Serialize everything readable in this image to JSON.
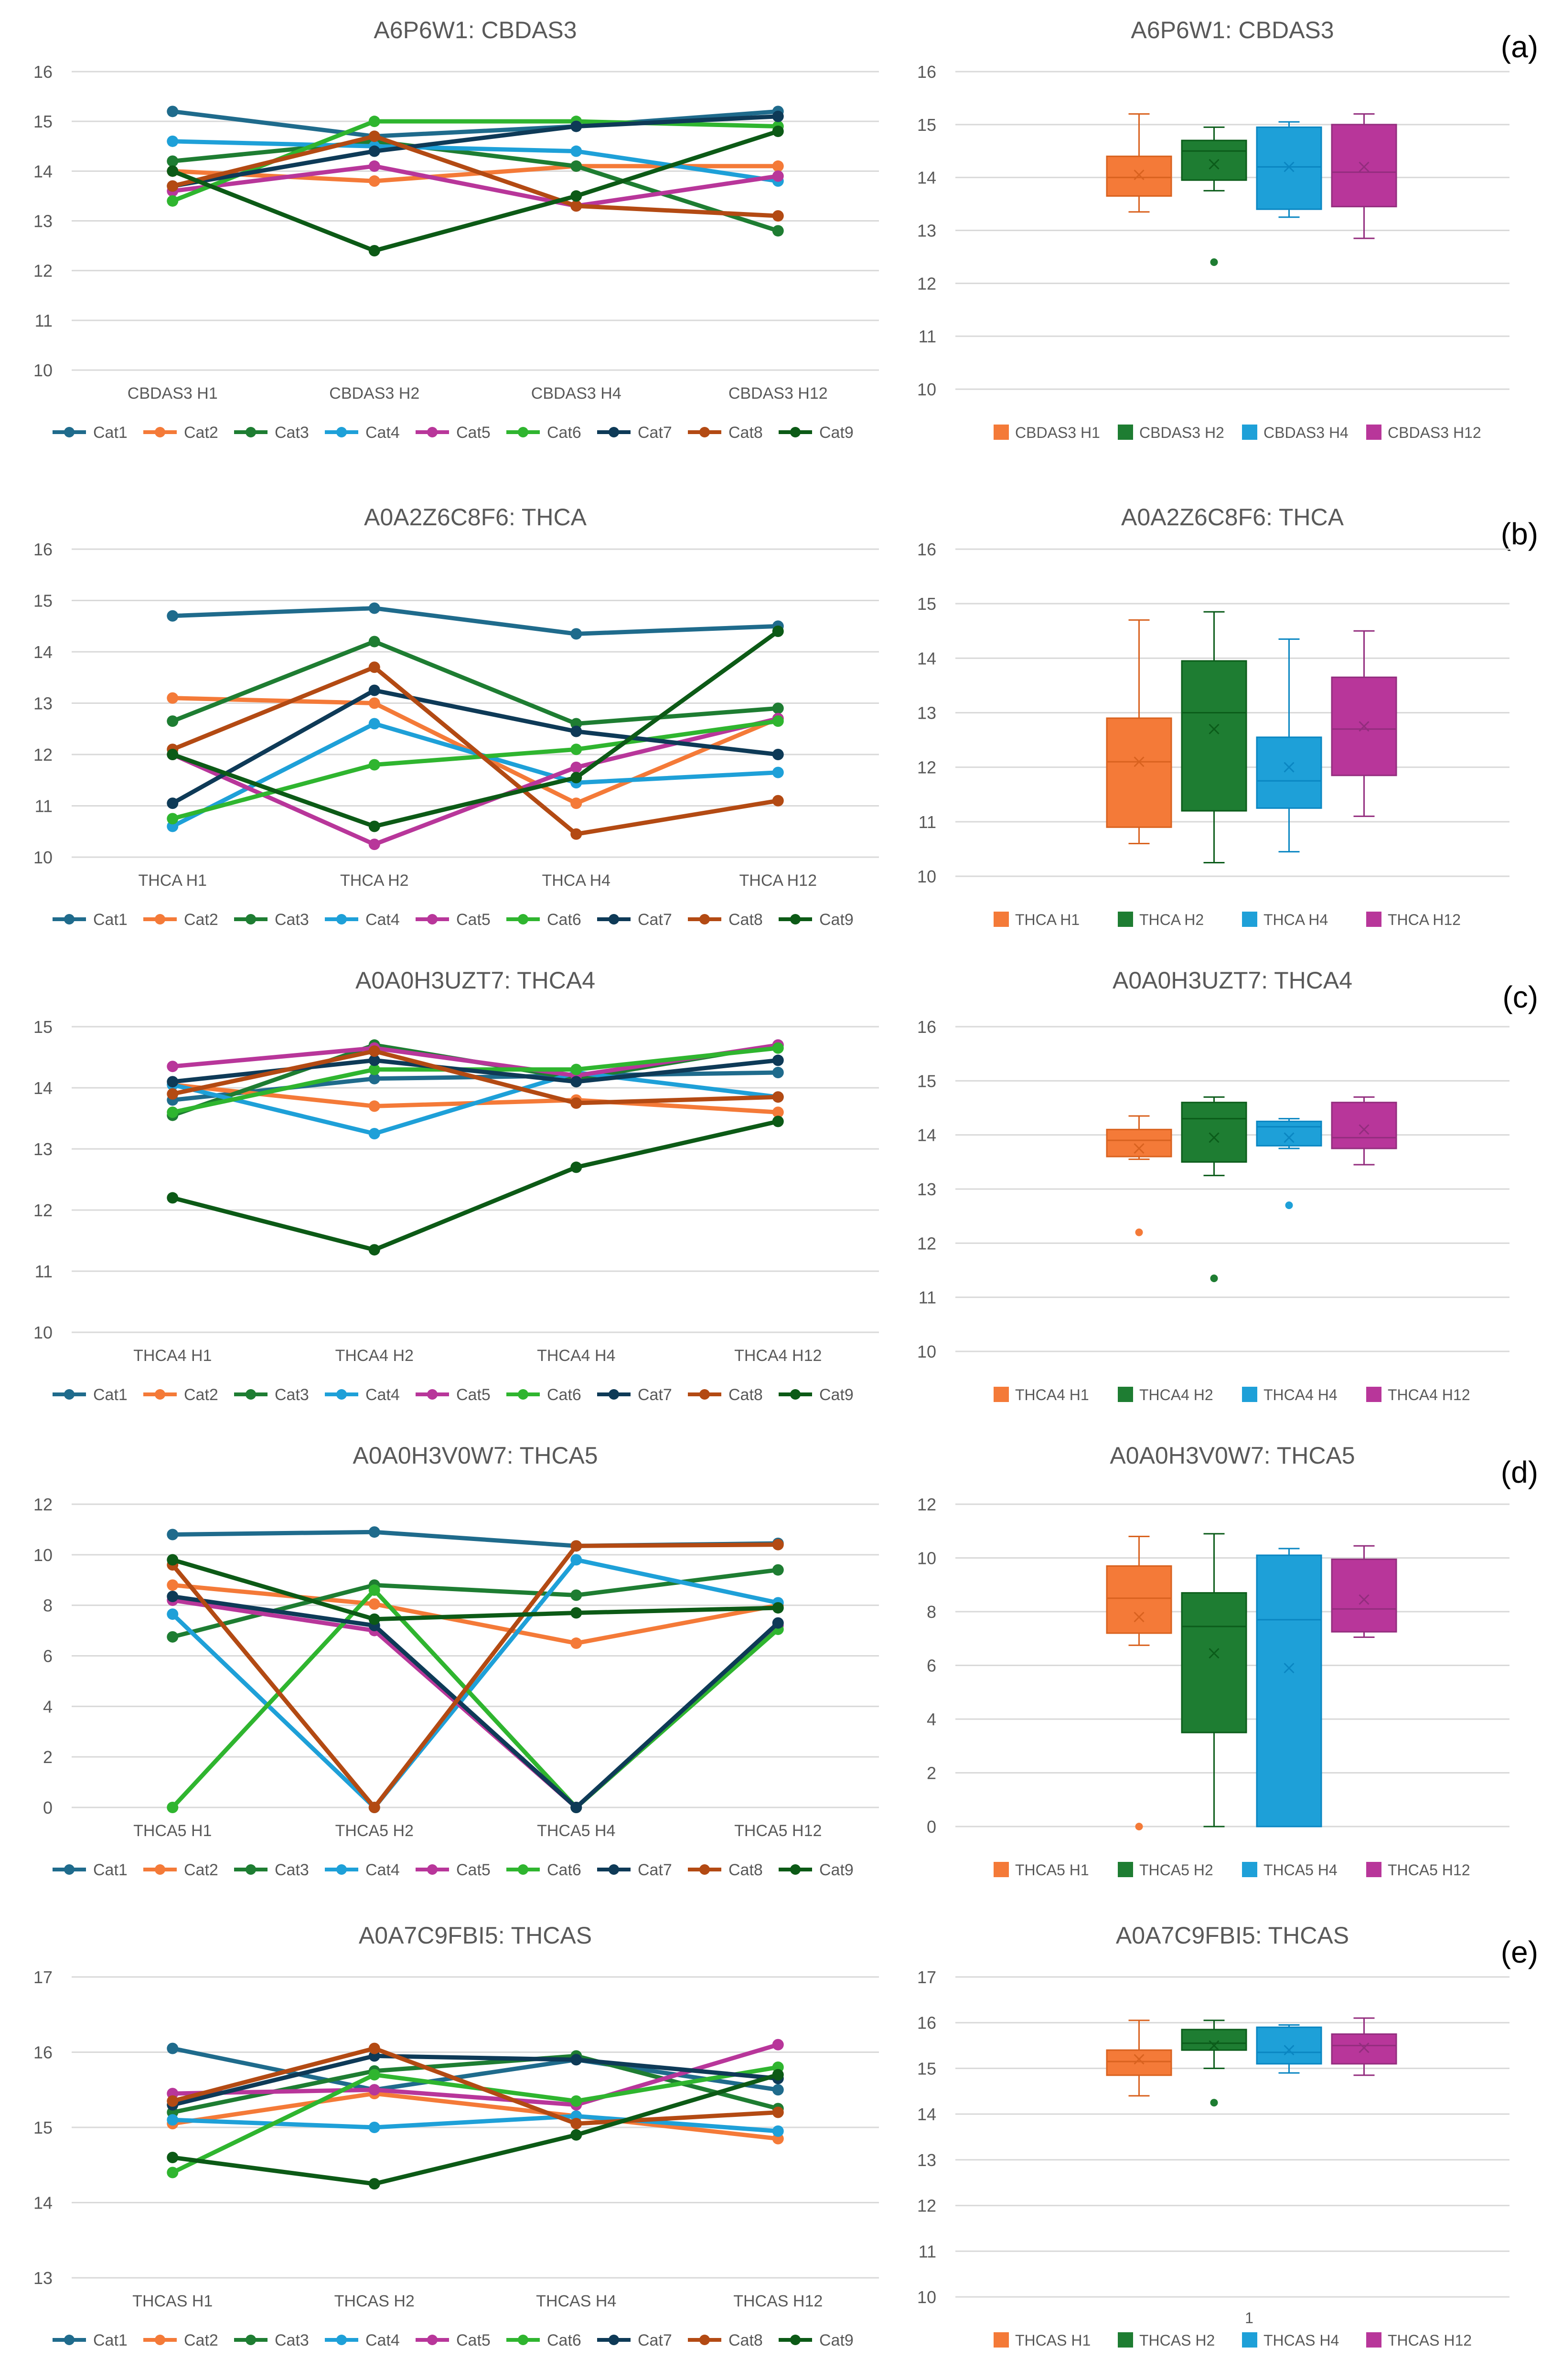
{
  "colors": {
    "categories": [
      "#1f6b8c",
      "#f47a38",
      "#1e7d32",
      "#1ea0d8",
      "#b8369a",
      "#2fb52f",
      "#0e3a57",
      "#b34a13",
      "#0c5a16"
    ],
    "box": [
      "#f47a38",
      "#1e7d32",
      "#1ea0d8",
      "#b8369a"
    ],
    "boxDark": [
      "#d9621f",
      "#0b5c1a",
      "#0a86c2",
      "#932d7e"
    ],
    "grid": "#d9d9d9",
    "text": "#595959"
  },
  "category_names": [
    "Cat1",
    "Cat2",
    "Cat3",
    "Cat4",
    "Cat5",
    "Cat6",
    "Cat7",
    "Cat8",
    "Cat9"
  ],
  "chart_data": [
    {
      "panel": "(a)",
      "type": "line",
      "title": "A6P6W1: CBDAS3",
      "categories": [
        "CBDAS3 H1",
        "CBDAS3 H2",
        "CBDAS3 H4",
        "CBDAS3 H12"
      ],
      "ylim": [
        10,
        16
      ],
      "yticks": [
        "10",
        "11",
        "12",
        "13",
        "14",
        "15",
        "16"
      ],
      "legend": "bottom",
      "series": [
        {
          "name": "Cat1",
          "values": [
            15.2,
            14.7,
            14.9,
            15.2
          ]
        },
        {
          "name": "Cat2",
          "values": [
            14.0,
            13.8,
            14.1,
            14.1
          ]
        },
        {
          "name": "Cat3",
          "values": [
            14.2,
            14.6,
            14.1,
            12.8
          ]
        },
        {
          "name": "Cat4",
          "values": [
            14.6,
            14.5,
            14.4,
            13.8
          ]
        },
        {
          "name": "Cat5",
          "values": [
            13.6,
            14.1,
            13.3,
            13.9
          ]
        },
        {
          "name": "Cat6",
          "values": [
            13.4,
            15.0,
            15.0,
            14.9
          ]
        },
        {
          "name": "Cat7",
          "values": [
            13.7,
            14.4,
            14.9,
            15.1
          ]
        },
        {
          "name": "Cat8",
          "values": [
            13.7,
            14.7,
            13.3,
            13.1
          ]
        },
        {
          "name": "Cat9",
          "values": [
            14.0,
            12.4,
            13.5,
            14.8
          ]
        }
      ]
    },
    {
      "panel": "(a)",
      "type": "box",
      "title": "A6P6W1: CBDAS3",
      "ylim": [
        10,
        16
      ],
      "yticks": [
        "10",
        "11",
        "12",
        "13",
        "14",
        "15",
        "16"
      ],
      "legend": "bottom",
      "xlabel": "",
      "boxes": [
        {
          "name": "CBDAS3 H1",
          "min": 13.35,
          "q1": 13.65,
          "median": 14.0,
          "q3": 14.4,
          "max": 15.2,
          "mean": 14.05,
          "outliers": []
        },
        {
          "name": "CBDAS3 H2",
          "min": 13.75,
          "q1": 13.95,
          "median": 14.5,
          "q3": 14.7,
          "max": 14.95,
          "mean": 14.25,
          "outliers": [
            12.4
          ]
        },
        {
          "name": "CBDAS3 H4",
          "min": 13.25,
          "q1": 13.4,
          "median": 14.2,
          "q3": 14.95,
          "max": 15.05,
          "mean": 14.2,
          "outliers": []
        },
        {
          "name": "CBDAS3 H12",
          "min": 12.85,
          "q1": 13.45,
          "median": 14.1,
          "q3": 15.0,
          "max": 15.2,
          "mean": 14.2,
          "outliers": []
        }
      ]
    },
    {
      "panel": "(b)",
      "type": "line",
      "title": "A0A2Z6C8F6: THCA",
      "categories": [
        "THCA H1",
        "THCA H2",
        "THCA H4",
        "THCA H12"
      ],
      "ylim": [
        10,
        16
      ],
      "yticks": [
        "10",
        "11",
        "12",
        "13",
        "14",
        "15",
        "16"
      ],
      "legend": "bottom",
      "series": [
        {
          "name": "Cat1",
          "values": [
            14.7,
            14.85,
            14.35,
            14.5
          ]
        },
        {
          "name": "Cat2",
          "values": [
            13.1,
            13.0,
            11.05,
            12.7
          ]
        },
        {
          "name": "Cat3",
          "values": [
            12.65,
            14.2,
            12.6,
            12.9
          ]
        },
        {
          "name": "Cat4",
          "values": [
            10.6,
            12.6,
            11.45,
            11.65
          ]
        },
        {
          "name": "Cat5",
          "values": [
            12.0,
            10.25,
            11.75,
            12.7
          ]
        },
        {
          "name": "Cat6",
          "values": [
            10.75,
            11.8,
            12.1,
            12.65
          ]
        },
        {
          "name": "Cat7",
          "values": [
            11.05,
            13.25,
            12.45,
            12.0
          ]
        },
        {
          "name": "Cat8",
          "values": [
            12.1,
            13.7,
            10.45,
            11.1
          ]
        },
        {
          "name": "Cat9",
          "values": [
            12.0,
            10.6,
            11.55,
            14.4
          ]
        }
      ]
    },
    {
      "panel": "(b)",
      "type": "box",
      "title": "A0A2Z6C8F6: THCA",
      "ylim": [
        10,
        16
      ],
      "yticks": [
        "10",
        "11",
        "12",
        "13",
        "14",
        "15",
        "16"
      ],
      "legend": "bottom",
      "xlabel": "",
      "boxes": [
        {
          "name": "THCA H1",
          "min": 10.6,
          "q1": 10.9,
          "median": 12.1,
          "q3": 12.9,
          "max": 14.7,
          "mean": 12.1,
          "outliers": []
        },
        {
          "name": "THCA H2",
          "min": 10.25,
          "q1": 11.2,
          "median": 13.0,
          "q3": 13.95,
          "max": 14.85,
          "mean": 12.7,
          "outliers": []
        },
        {
          "name": "THCA H4",
          "min": 10.45,
          "q1": 11.25,
          "median": 11.75,
          "q3": 12.55,
          "max": 14.35,
          "mean": 12.0,
          "outliers": []
        },
        {
          "name": "THCA H12",
          "min": 11.1,
          "q1": 11.85,
          "median": 12.7,
          "q3": 13.65,
          "max": 14.5,
          "mean": 12.75,
          "outliers": []
        }
      ]
    },
    {
      "panel": "(c)",
      "type": "line",
      "title": "A0A0H3UZT7: THCA4",
      "categories": [
        "THCA4 H1",
        "THCA4 H2",
        "THCA4 H4",
        "THCA4 H12"
      ],
      "ylim": [
        10,
        15
      ],
      "yticks": [
        "10",
        "11",
        "12",
        "13",
        "14",
        "15"
      ],
      "legend": "bottom",
      "series": [
        {
          "name": "Cat1",
          "values": [
            13.8,
            14.15,
            14.2,
            14.25
          ]
        },
        {
          "name": "Cat2",
          "values": [
            14.05,
            13.7,
            13.8,
            13.6
          ]
        },
        {
          "name": "Cat3",
          "values": [
            13.55,
            14.7,
            14.15,
            14.7
          ]
        },
        {
          "name": "Cat4",
          "values": [
            14.05,
            13.25,
            14.25,
            13.85
          ]
        },
        {
          "name": "Cat5",
          "values": [
            14.35,
            14.65,
            14.2,
            14.7
          ]
        },
        {
          "name": "Cat6",
          "values": [
            13.6,
            14.3,
            14.3,
            14.65
          ]
        },
        {
          "name": "Cat7",
          "values": [
            14.1,
            14.45,
            14.1,
            14.45
          ]
        },
        {
          "name": "Cat8",
          "values": [
            13.9,
            14.6,
            13.75,
            13.85
          ]
        },
        {
          "name": "Cat9",
          "values": [
            12.2,
            11.35,
            12.7,
            13.45
          ]
        }
      ]
    },
    {
      "panel": "(c)",
      "type": "box",
      "title": "A0A0H3UZT7: THCA4",
      "ylim": [
        10,
        16
      ],
      "yticks": [
        "10",
        "11",
        "12",
        "13",
        "14",
        "15",
        "16"
      ],
      "legend": "bottom",
      "xlabel": "",
      "boxes": [
        {
          "name": "THCA4 H1",
          "min": 13.55,
          "q1": 13.6,
          "median": 13.9,
          "q3": 14.1,
          "max": 14.35,
          "mean": 13.75,
          "outliers": [
            12.2
          ]
        },
        {
          "name": "THCA4 H2",
          "min": 13.25,
          "q1": 13.5,
          "median": 14.3,
          "q3": 14.6,
          "max": 14.7,
          "mean": 13.95,
          "outliers": [
            11.35
          ]
        },
        {
          "name": "THCA4 H4",
          "min": 13.75,
          "q1": 13.8,
          "median": 14.15,
          "q3": 14.25,
          "max": 14.3,
          "mean": 13.95,
          "outliers": [
            12.7
          ]
        },
        {
          "name": "THCA4 H12",
          "min": 13.45,
          "q1": 13.75,
          "median": 13.95,
          "q3": 14.6,
          "max": 14.7,
          "mean": 14.1,
          "outliers": []
        }
      ]
    },
    {
      "panel": "(d)",
      "type": "line",
      "title": "A0A0H3V0W7: THCA5",
      "categories": [
        "THCA5 H1",
        "THCA5 H2",
        "THCA5 H4",
        "THCA5 H12"
      ],
      "ylim": [
        0,
        12
      ],
      "yticks": [
        "0",
        "2",
        "4",
        "6",
        "8",
        "10",
        "12"
      ],
      "legend": "bottom",
      "series": [
        {
          "name": "Cat1",
          "values": [
            10.8,
            10.9,
            10.35,
            10.45
          ]
        },
        {
          "name": "Cat2",
          "values": [
            8.8,
            8.05,
            6.5,
            8.0
          ]
        },
        {
          "name": "Cat3",
          "values": [
            6.75,
            8.8,
            8.4,
            9.4
          ]
        },
        {
          "name": "Cat4",
          "values": [
            7.65,
            0.0,
            9.8,
            8.1
          ]
        },
        {
          "name": "Cat5",
          "values": [
            8.2,
            7.0,
            0.0,
            7.2
          ]
        },
        {
          "name": "Cat6",
          "values": [
            0.0,
            8.6,
            0.0,
            7.05
          ]
        },
        {
          "name": "Cat7",
          "values": [
            8.35,
            7.2,
            0.0,
            7.3
          ]
        },
        {
          "name": "Cat8",
          "values": [
            9.6,
            0.0,
            10.35,
            10.4
          ]
        },
        {
          "name": "Cat9",
          "values": [
            9.8,
            7.45,
            7.7,
            7.9
          ]
        }
      ]
    },
    {
      "panel": "(d)",
      "type": "box",
      "title": "A0A0H3V0W7: THCA5",
      "ylim": [
        0,
        12
      ],
      "yticks": [
        "0",
        "2",
        "4",
        "6",
        "8",
        "10",
        "12"
      ],
      "legend": "bottom",
      "xlabel": "",
      "boxes": [
        {
          "name": "THCA5 H1",
          "min": 6.75,
          "q1": 7.2,
          "median": 8.5,
          "q3": 9.7,
          "max": 10.8,
          "mean": 7.8,
          "outliers": [
            0.0
          ]
        },
        {
          "name": "THCA5 H2",
          "min": 0.0,
          "q1": 3.5,
          "median": 7.45,
          "q3": 8.7,
          "max": 10.9,
          "mean": 6.45,
          "outliers": []
        },
        {
          "name": "THCA5 H4",
          "min": 0.0,
          "q1": 0.0,
          "median": 7.7,
          "q3": 10.1,
          "max": 10.35,
          "mean": 5.9,
          "outliers": []
        },
        {
          "name": "THCA5 H12",
          "min": 7.05,
          "q1": 7.25,
          "median": 8.1,
          "q3": 9.95,
          "max": 10.45,
          "mean": 8.45,
          "outliers": []
        }
      ]
    },
    {
      "panel": "(e)",
      "type": "line",
      "title": "A0A7C9FBI5: THCAS",
      "categories": [
        "THCAS H1",
        "THCAS H2",
        "THCAS H4",
        "THCAS H12"
      ],
      "ylim": [
        13,
        17
      ],
      "yticks": [
        "13",
        "14",
        "15",
        "16",
        "17"
      ],
      "legend": "bottom",
      "series": [
        {
          "name": "Cat1",
          "values": [
            16.05,
            15.5,
            15.9,
            15.5
          ]
        },
        {
          "name": "Cat2",
          "values": [
            15.05,
            15.45,
            15.15,
            14.85
          ]
        },
        {
          "name": "Cat3",
          "values": [
            15.2,
            15.75,
            15.95,
            15.25
          ]
        },
        {
          "name": "Cat4",
          "values": [
            15.1,
            15.0,
            15.15,
            14.95
          ]
        },
        {
          "name": "Cat5",
          "values": [
            15.45,
            15.5,
            15.3,
            16.1
          ]
        },
        {
          "name": "Cat6",
          "values": [
            14.4,
            15.7,
            15.35,
            15.8
          ]
        },
        {
          "name": "Cat7",
          "values": [
            15.3,
            15.95,
            15.9,
            15.65
          ]
        },
        {
          "name": "Cat8",
          "values": [
            15.35,
            16.05,
            15.05,
            15.2
          ]
        },
        {
          "name": "Cat9",
          "values": [
            14.6,
            14.25,
            14.9,
            15.7
          ]
        }
      ]
    },
    {
      "panel": "(e)",
      "type": "box",
      "title": "A0A7C9FBI5: THCAS",
      "ylim": [
        10,
        17
      ],
      "yticks": [
        "10",
        "11",
        "12",
        "13",
        "14",
        "15",
        "16",
        "17"
      ],
      "legend": "bottom",
      "xlabel": "1",
      "boxes": [
        {
          "name": "THCAS H1",
          "min": 14.4,
          "q1": 14.85,
          "median": 15.15,
          "q3": 15.4,
          "max": 16.05,
          "mean": 15.2,
          "outliers": []
        },
        {
          "name": "THCAS H2",
          "min": 15.0,
          "q1": 15.4,
          "median": 15.55,
          "q3": 15.85,
          "max": 16.05,
          "mean": 15.5,
          "outliers": [
            14.25
          ]
        },
        {
          "name": "THCAS H4",
          "min": 14.9,
          "q1": 15.1,
          "median": 15.35,
          "q3": 15.9,
          "max": 15.95,
          "mean": 15.4,
          "outliers": []
        },
        {
          "name": "THCAS H12",
          "min": 14.85,
          "q1": 15.1,
          "median": 15.5,
          "q3": 15.75,
          "max": 16.1,
          "mean": 15.45,
          "outliers": []
        }
      ]
    }
  ]
}
